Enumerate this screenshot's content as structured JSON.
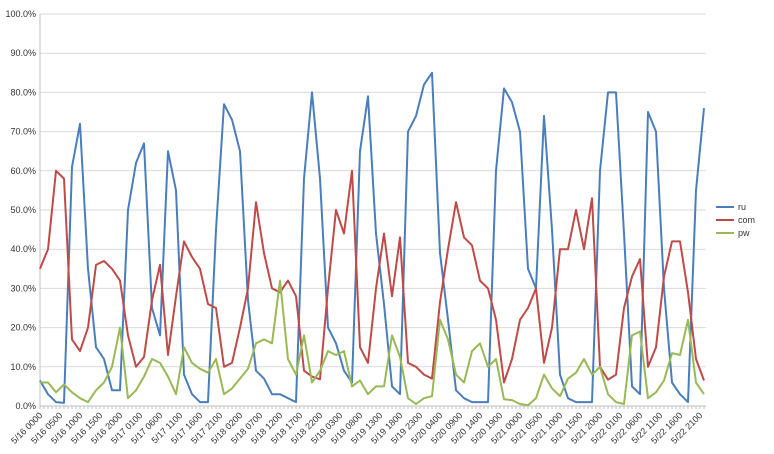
{
  "chart_data": {
    "type": "line",
    "title": "",
    "xlabel": "",
    "ylabel": "",
    "ylim": [
      0,
      100
    ],
    "y_tick_format": "percent_1dp",
    "yticks": [
      "0.0%",
      "10.0%",
      "20.0%",
      "30.0%",
      "40.0%",
      "50.0%",
      "60.0%",
      "70.0%",
      "80.0%",
      "90.0%",
      "100.0%"
    ],
    "x_start_label": "5/16 0000",
    "x_step_hours": 2,
    "x_tick_every_hours": 5,
    "xticks": [
      "5/16 0000",
      "5/16 0500",
      "5/16 1000",
      "5/16 1500",
      "5/16 2000",
      "5/17 0100",
      "5/17 0600",
      "5/17 1100",
      "5/17 1600",
      "5/17 2100",
      "5/18 0200",
      "5/18 0700",
      "5/18 1200",
      "5/18 1700",
      "5/18 2200",
      "5/19 0300",
      "5/19 0800",
      "5/19 1300",
      "5/19 1800",
      "5/19 2300",
      "5/20 0400",
      "5/20 0900",
      "5/20 1400",
      "5/20 1900",
      "5/21 0000",
      "5/21 0500",
      "5/21 1000",
      "5/21 1500",
      "5/21 2000",
      "5/22 0100",
      "5/22 0600",
      "5/22 1100",
      "5/22 1600",
      "5/22 2100"
    ],
    "grid": true,
    "legend": "right",
    "series": [
      {
        "name": "ru",
        "color": "#4a7ebb",
        "values": [
          6.5,
          3,
          1,
          0.8,
          61,
          72,
          35,
          15,
          12,
          4,
          4,
          50,
          62,
          67,
          25,
          18,
          65,
          55,
          8,
          3,
          1,
          1,
          45,
          77,
          73,
          65,
          27,
          9,
          7,
          3,
          3,
          2,
          1,
          58,
          80,
          58,
          20,
          16,
          9,
          6,
          65,
          79,
          44,
          26,
          5,
          3,
          70,
          74,
          82,
          85,
          39,
          22,
          4,
          2,
          1,
          1,
          1,
          60,
          81,
          77.5,
          70,
          35,
          30,
          74,
          45,
          8,
          2,
          1,
          1,
          1,
          60,
          80,
          80,
          44,
          5,
          3,
          75,
          70,
          30,
          6,
          3,
          1,
          55,
          76
        ]
      },
      {
        "name": "com",
        "color": "#be4b48",
        "values": [
          35,
          40,
          60,
          58,
          17,
          14,
          20,
          36,
          37,
          35,
          32,
          18,
          10,
          12.5,
          27,
          36,
          13,
          28,
          42,
          38,
          35,
          26,
          25,
          10,
          11,
          20,
          30,
          52,
          39,
          30,
          29,
          32,
          28,
          9,
          7.5,
          6.8,
          30,
          50,
          44,
          60,
          15,
          11,
          30,
          44,
          28,
          43,
          11,
          10,
          8,
          7,
          26.5,
          40,
          52,
          43,
          41,
          32,
          30,
          22,
          6,
          12,
          22,
          25,
          30,
          11,
          20,
          40,
          40,
          50,
          40,
          53,
          10,
          6.7,
          8,
          25,
          33,
          37.5,
          10,
          15,
          33,
          42,
          42,
          29,
          12,
          6.5
        ]
      },
      {
        "name": "pw",
        "color": "#98b954",
        "values": [
          6,
          6,
          3.5,
          5.5,
          3.5,
          2,
          1,
          4,
          6,
          10,
          20,
          2,
          4,
          7.5,
          12,
          11,
          7.5,
          3,
          15,
          11,
          9.5,
          8.5,
          12,
          3,
          4.5,
          7,
          9.5,
          16,
          17,
          16,
          32,
          12,
          8,
          18,
          6,
          9,
          14,
          13,
          14,
          5,
          6.5,
          3,
          5,
          5,
          18,
          12.5,
          2,
          0.5,
          2,
          2.5,
          22,
          17,
          8,
          6,
          14,
          16,
          10,
          12,
          1.7,
          1.5,
          0.5,
          0.2,
          2,
          8,
          4.5,
          2.5,
          7,
          8.5,
          12,
          8,
          10,
          3,
          1,
          0.5,
          18,
          19,
          2,
          3.5,
          6.5,
          13.5,
          13,
          22,
          6,
          3
        ]
      }
    ]
  }
}
